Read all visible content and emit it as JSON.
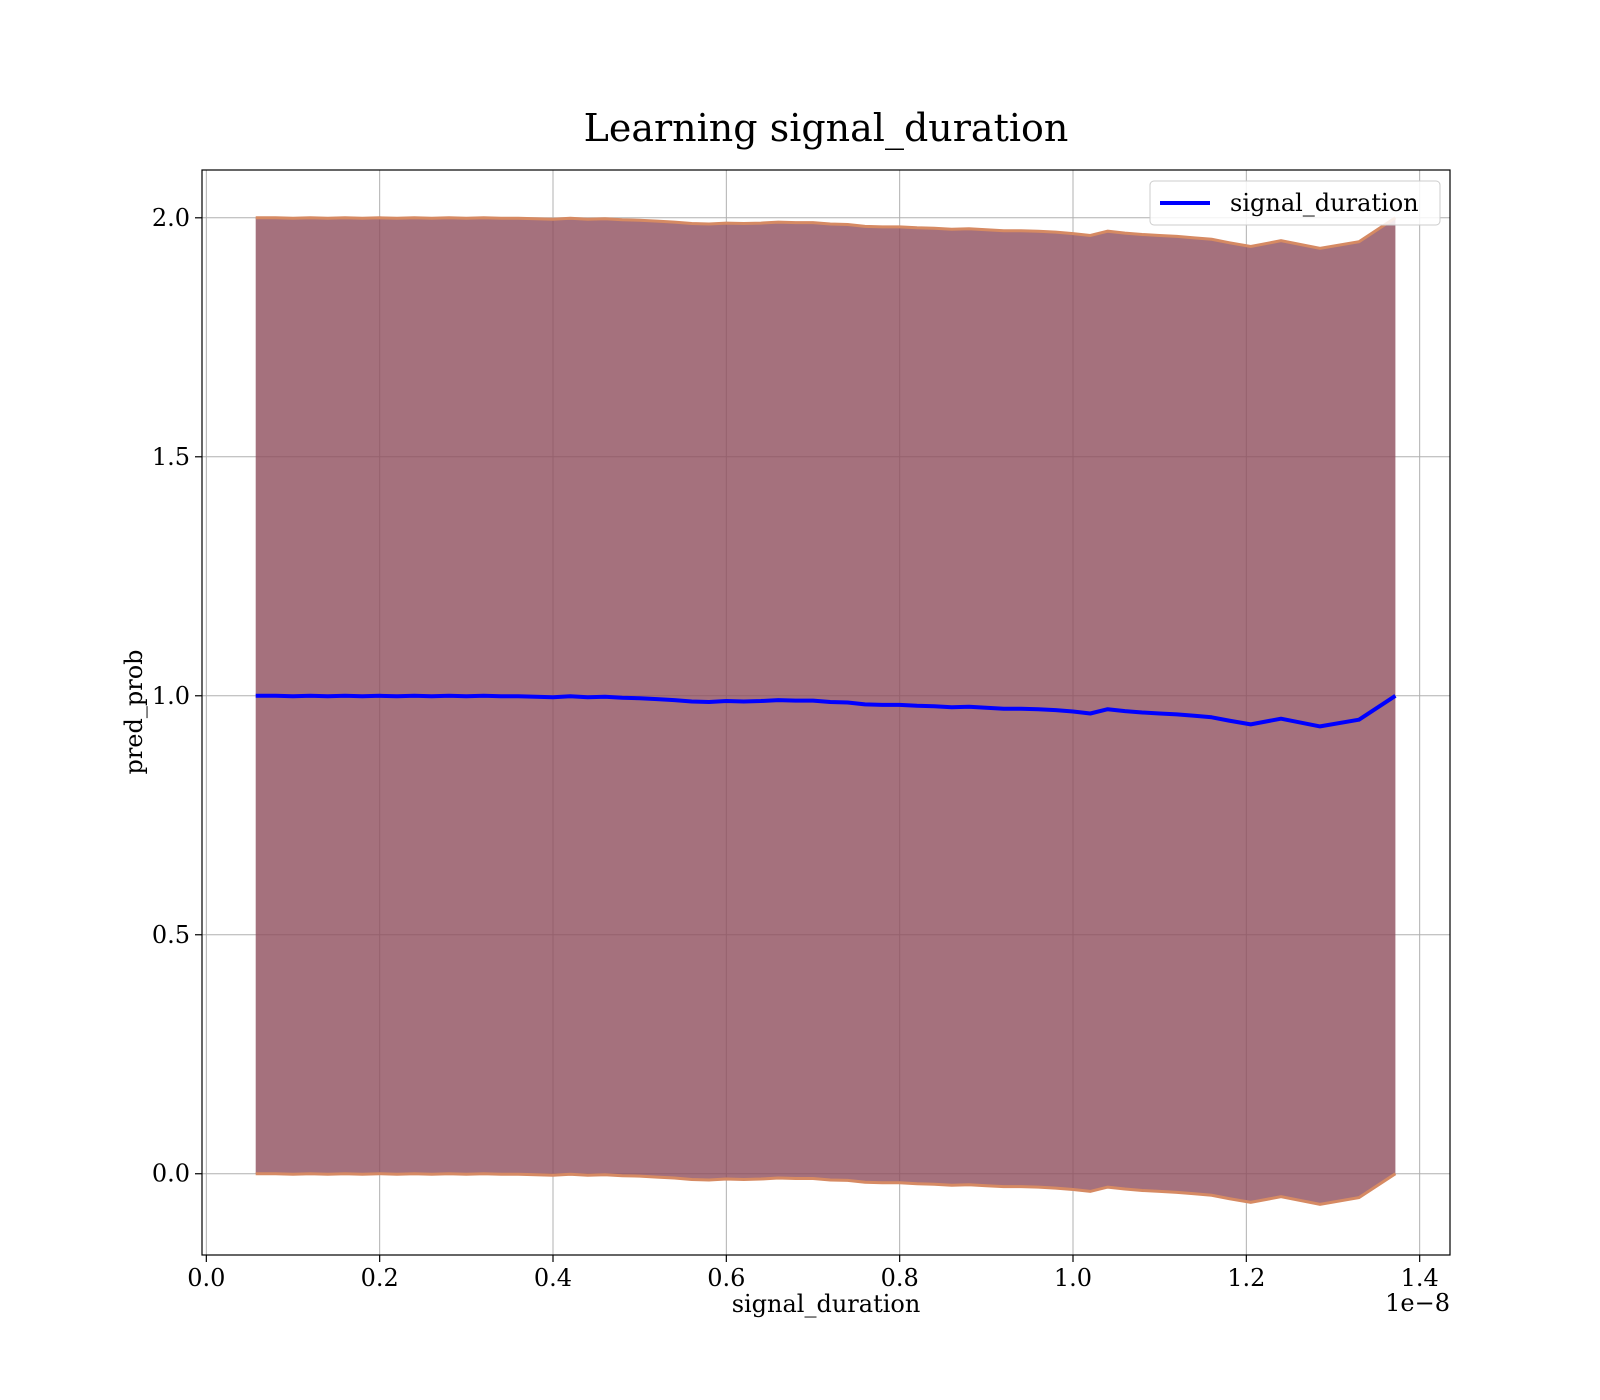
{
  "chart_data": {
    "type": "line",
    "title": "Learning signal_duration",
    "xlabel": "signal_duration",
    "ylabel": "pred_prob",
    "x_offset_label": "1e−8",
    "x_scale_factor": 1e-08,
    "xlim": [
      -0.005,
      1.435
    ],
    "ylim": [
      -0.17,
      2.1
    ],
    "x_ticks": [
      0.0,
      0.2,
      0.4,
      0.6,
      0.8,
      1.0,
      1.2,
      1.4
    ],
    "x_tick_labels": [
      "0.0",
      "0.2",
      "0.4",
      "0.6",
      "0.8",
      "1.0",
      "1.2",
      "1.4"
    ],
    "y_ticks": [
      0.0,
      0.5,
      1.0,
      1.5,
      2.0
    ],
    "y_tick_labels": [
      "0.0",
      "0.5",
      "1.0",
      "1.5",
      "2.0"
    ],
    "grid": true,
    "legend_position": "top-right",
    "series": [
      {
        "name": "signal_duration",
        "color": "#0000ff",
        "x": [
          0.057,
          0.08,
          0.1,
          0.12,
          0.14,
          0.16,
          0.18,
          0.2,
          0.22,
          0.24,
          0.26,
          0.28,
          0.3,
          0.32,
          0.34,
          0.36,
          0.38,
          0.4,
          0.42,
          0.44,
          0.46,
          0.48,
          0.5,
          0.52,
          0.54,
          0.56,
          0.58,
          0.6,
          0.62,
          0.64,
          0.66,
          0.68,
          0.7,
          0.72,
          0.74,
          0.76,
          0.78,
          0.8,
          0.82,
          0.84,
          0.86,
          0.88,
          0.9,
          0.92,
          0.94,
          0.96,
          0.98,
          1.0,
          1.02,
          1.04,
          1.06,
          1.08,
          1.1,
          1.12,
          1.14,
          1.16,
          1.18,
          1.205,
          1.24,
          1.285,
          1.33,
          1.372
        ],
        "values": [
          1.0,
          1.0,
          0.999,
          1.0,
          0.999,
          1.0,
          0.999,
          1.0,
          0.999,
          1.0,
          0.999,
          1.0,
          0.999,
          1.0,
          0.999,
          0.999,
          0.998,
          0.997,
          0.999,
          0.997,
          0.998,
          0.996,
          0.995,
          0.993,
          0.991,
          0.988,
          0.987,
          0.989,
          0.988,
          0.989,
          0.991,
          0.99,
          0.99,
          0.987,
          0.986,
          0.982,
          0.981,
          0.981,
          0.979,
          0.978,
          0.976,
          0.977,
          0.975,
          0.973,
          0.973,
          0.972,
          0.97,
          0.967,
          0.963,
          0.972,
          0.968,
          0.965,
          0.963,
          0.961,
          0.958,
          0.955,
          0.948,
          0.94,
          0.952,
          0.936,
          0.95,
          1.0
        ]
      }
    ],
    "band": {
      "fill_color": "#8e4d5c",
      "fill_opacity": 0.8,
      "edge_color": "#d68a63",
      "lower": [
        0.0,
        0.0,
        -0.001,
        0.0,
        -0.001,
        0.0,
        -0.001,
        0.0,
        -0.001,
        0.0,
        -0.001,
        0.0,
        -0.001,
        0.0,
        -0.001,
        -0.001,
        -0.002,
        -0.003,
        -0.001,
        -0.003,
        -0.002,
        -0.004,
        -0.005,
        -0.007,
        -0.009,
        -0.012,
        -0.013,
        -0.011,
        -0.012,
        -0.011,
        -0.009,
        -0.01,
        -0.01,
        -0.013,
        -0.014,
        -0.018,
        -0.019,
        -0.019,
        -0.021,
        -0.022,
        -0.024,
        -0.023,
        -0.025,
        -0.027,
        -0.027,
        -0.028,
        -0.03,
        -0.033,
        -0.037,
        -0.028,
        -0.032,
        -0.035,
        -0.037,
        -0.039,
        -0.042,
        -0.045,
        -0.052,
        -0.06,
        -0.048,
        -0.064,
        -0.05,
        0.0
      ],
      "upper": [
        2.0,
        2.0,
        1.999,
        2.0,
        1.999,
        2.0,
        1.999,
        2.0,
        1.999,
        2.0,
        1.999,
        2.0,
        1.999,
        2.0,
        1.999,
        1.999,
        1.998,
        1.997,
        1.999,
        1.997,
        1.998,
        1.996,
        1.995,
        1.993,
        1.991,
        1.988,
        1.987,
        1.989,
        1.988,
        1.989,
        1.991,
        1.99,
        1.99,
        1.987,
        1.986,
        1.982,
        1.981,
        1.981,
        1.979,
        1.978,
        1.976,
        1.977,
        1.975,
        1.973,
        1.973,
        1.972,
        1.97,
        1.967,
        1.963,
        1.972,
        1.968,
        1.965,
        1.963,
        1.961,
        1.958,
        1.955,
        1.948,
        1.94,
        1.952,
        1.936,
        1.95,
        2.0
      ]
    }
  }
}
